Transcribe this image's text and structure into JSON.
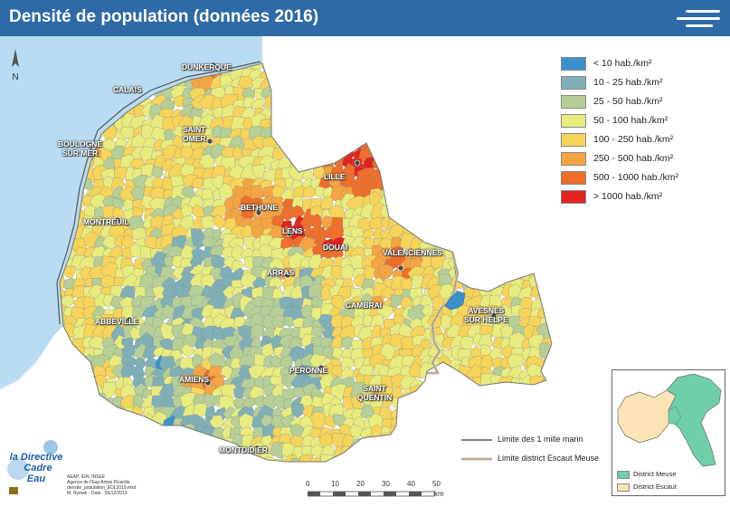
{
  "title": "Densité de population (données 2016)",
  "colors": {
    "header": "#2e6aa8",
    "sea": "#b9dcf2",
    "outside": "#ffffff"
  },
  "legend": [
    {
      "label": "< 10 hab./km²",
      "color": "#3a8fcd"
    },
    {
      "label": "10 - 25 hab./km²",
      "color": "#7fb0b8"
    },
    {
      "label": "25 - 50 hab./km²",
      "color": "#b5cf97"
    },
    {
      "label": "50 - 100 hab./km²",
      "color": "#e8ec7e"
    },
    {
      "label": "100 - 250 hab./km²",
      "color": "#f7d55a"
    },
    {
      "label": "250 - 500 hab./km²",
      "color": "#f5a442"
    },
    {
      "label": "500 - 1000 hab./km²",
      "color": "#ee6e2a"
    },
    {
      "label": "> 1000 hab./km²",
      "color": "#e2231f"
    }
  ],
  "cities": [
    {
      "name": "DUNKERQUE"
    },
    {
      "name": "CALAIS"
    },
    {
      "name": "SAINT\nOMER"
    },
    {
      "name": "BOULOGNE\nSUR MER"
    },
    {
      "name": "LILLE"
    },
    {
      "name": "BETHUNE"
    },
    {
      "name": "LENS"
    },
    {
      "name": "DOUAI"
    },
    {
      "name": "VALENCIENNES"
    },
    {
      "name": "MONTREUIL"
    },
    {
      "name": "ARRAS"
    },
    {
      "name": "CAMBRAI"
    },
    {
      "name": "AVESNES\nSUR HELPE"
    },
    {
      "name": "ABBEVILLE"
    },
    {
      "name": "PERONNE"
    },
    {
      "name": "AMIENS"
    },
    {
      "name": "SAINT\nQUENTIN"
    },
    {
      "name": "MONTDIDIER"
    }
  ],
  "line_legend": [
    {
      "label": "Limite des 1 mille marin"
    },
    {
      "label": "Limite district Escaut Meuse"
    }
  ],
  "inset": {
    "meuse_label": "District Meuse",
    "escaut_label": "District Escaut",
    "meuse_color": "#6fcfa8",
    "escaut_color": "#fbe3b5"
  },
  "scale": {
    "ticks": [
      "0",
      "10",
      "20",
      "30",
      "40",
      "50"
    ],
    "unit": "km"
  },
  "north_label": "N",
  "credits": [
    "AEAP, IGN, INSEE",
    "Agence de l'Eau Artois Picardie",
    "densite_population_EDL2019.mxd",
    "M. Rymek - Date : 06/12/2019"
  ],
  "logo_text": "la Directive\nCadre\nEau"
}
